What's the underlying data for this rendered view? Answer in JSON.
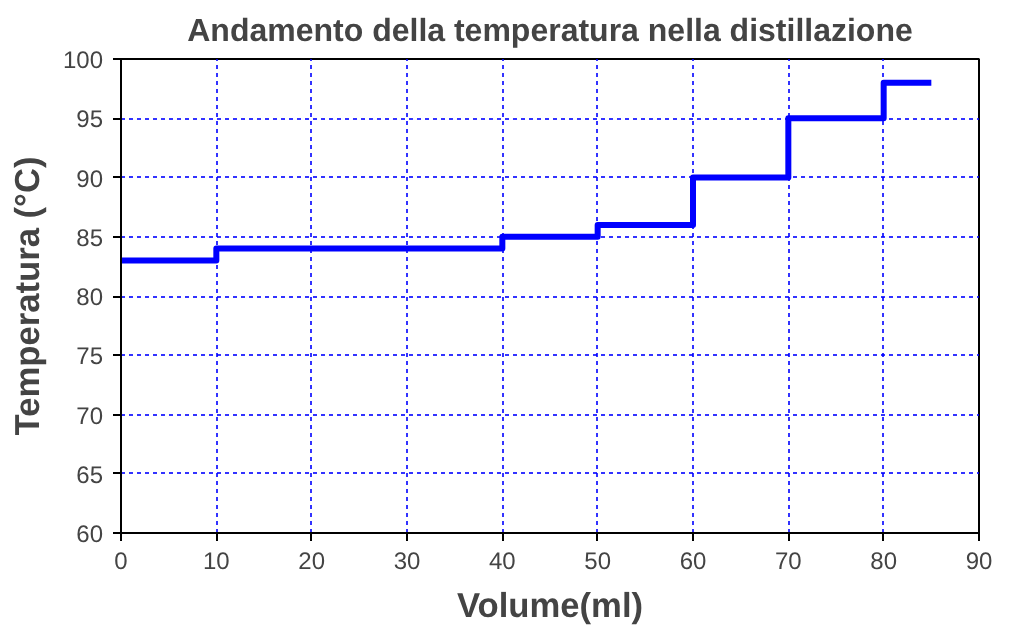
{
  "chart_data": {
    "type": "step",
    "title": "Andamento della temperatura nella distillazione",
    "xlabel": "Volume(ml)",
    "ylabel": "Temperatura (°C)",
    "x": [
      0,
      10,
      40,
      50,
      60,
      70,
      80,
      85
    ],
    "series": [
      {
        "color": "#0000ff",
        "values": [
          83,
          84,
          85,
          86,
          90,
          95,
          98,
          98
        ]
      }
    ],
    "xlim": [
      0,
      90
    ],
    "xticks": [
      0,
      10,
      20,
      30,
      40,
      50,
      60,
      70,
      80,
      90
    ],
    "ylim": [
      60,
      100
    ],
    "yticks": [
      60,
      65,
      70,
      75,
      80,
      85,
      90,
      95,
      100
    ],
    "grid": true,
    "marker": "none",
    "line_style": "solid"
  }
}
